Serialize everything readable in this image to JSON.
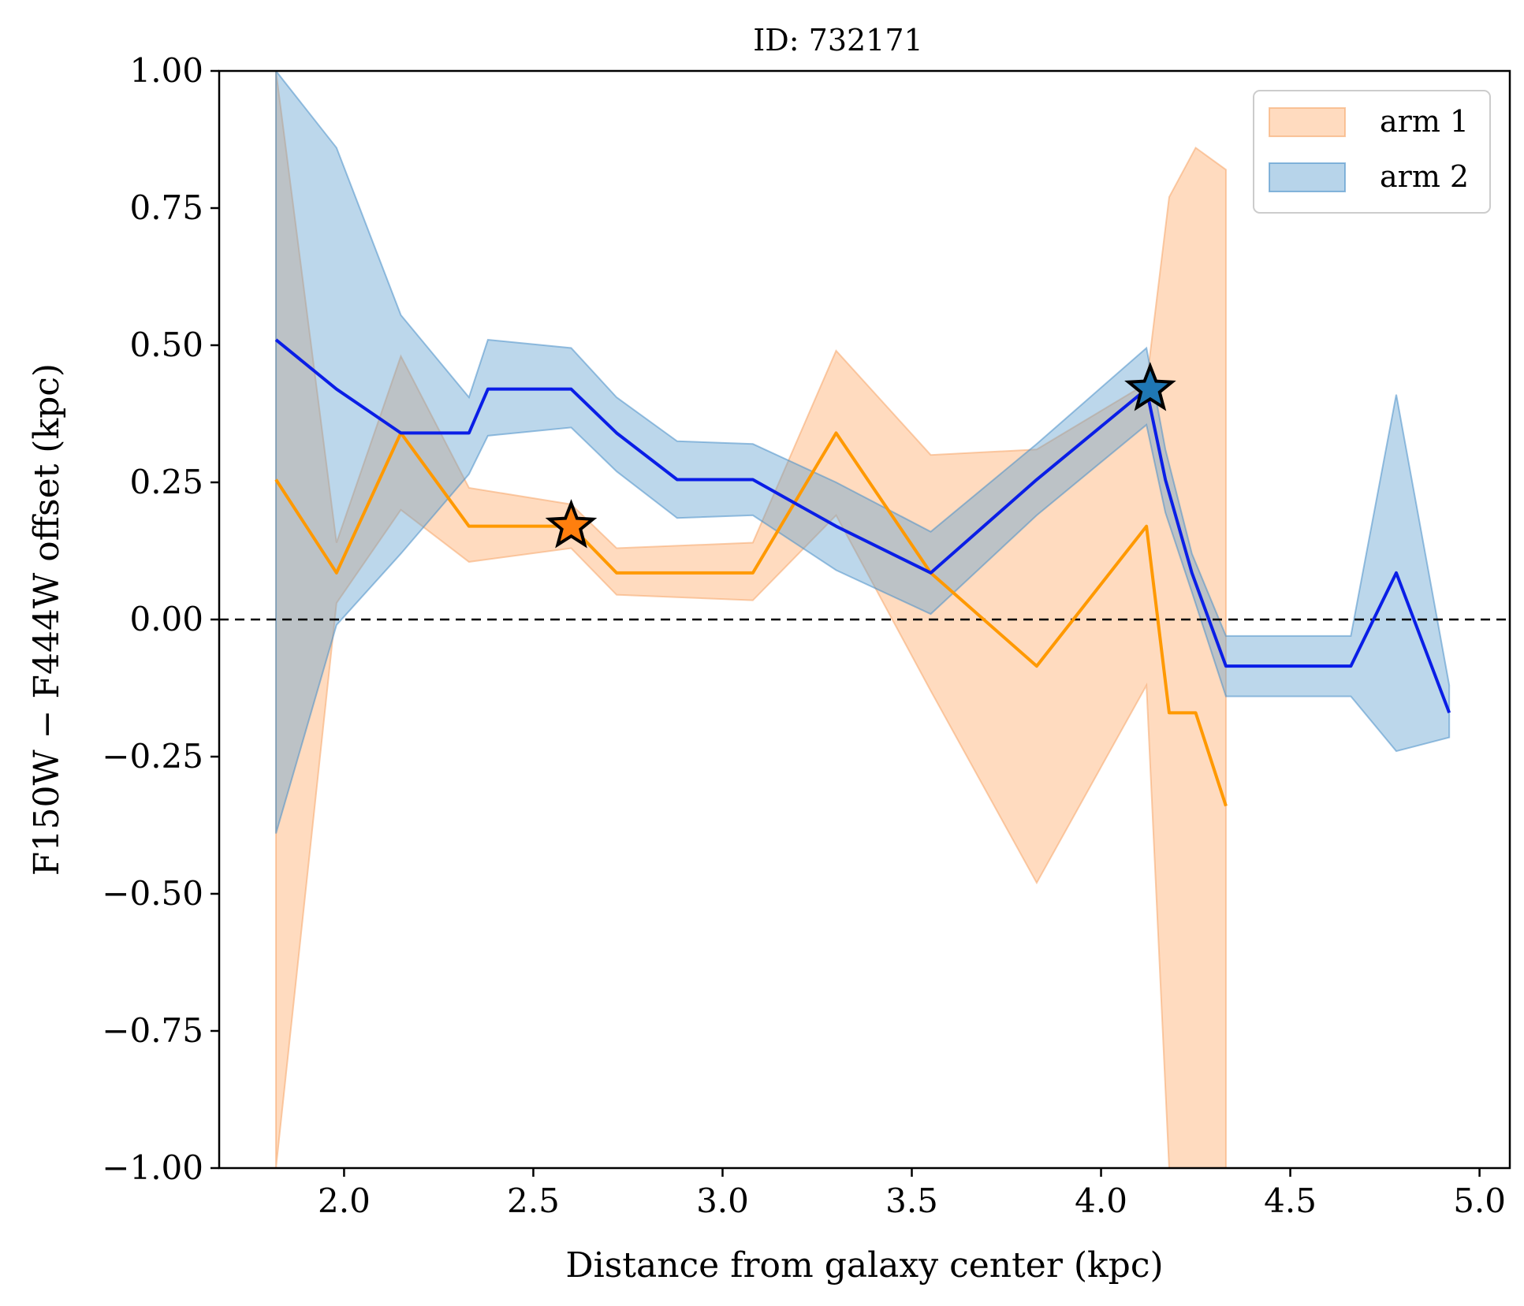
{
  "chart_data": {
    "type": "line",
    "title": "ID: 732171",
    "xlabel": "Distance from galaxy center (kpc)",
    "ylabel": "F150W − F444W offset (kpc)",
    "xlim": [
      1.67,
      5.08
    ],
    "ylim": [
      -1.0,
      1.0
    ],
    "xticks": [
      2.0,
      2.5,
      3.0,
      3.5,
      4.0,
      4.5,
      5.0
    ],
    "xtick_labels": [
      "2.0",
      "2.5",
      "3.0",
      "3.5",
      "4.0",
      "4.5",
      "5.0"
    ],
    "yticks": [
      -1.0,
      -0.75,
      -0.5,
      -0.25,
      0.0,
      0.25,
      0.5,
      0.75,
      1.0
    ],
    "ytick_labels": [
      "−1.00",
      "−0.75",
      "−0.50",
      "−0.25",
      "0.00",
      "0.25",
      "0.50",
      "0.75",
      "1.00"
    ],
    "reference_line": {
      "y": 0.0,
      "style": "dashed",
      "color": "#000000"
    },
    "legend": {
      "position": "top-right"
    },
    "series": [
      {
        "name": "arm 1",
        "line_color": "#ff9900",
        "band_color": "#ffb070",
        "band_edge": "#f5a66a",
        "x": [
          1.82,
          1.98,
          2.15,
          2.33,
          2.6,
          2.72,
          3.08,
          3.3,
          3.55,
          3.83,
          4.12,
          4.18,
          4.25,
          4.33
        ],
        "y": [
          0.255,
          0.085,
          0.34,
          0.17,
          0.17,
          0.085,
          0.085,
          0.34,
          0.085,
          -0.085,
          0.17,
          -0.17,
          -0.17,
          -0.34
        ],
        "upper": [
          1.0,
          0.14,
          0.48,
          0.24,
          0.21,
          0.13,
          0.14,
          0.49,
          0.3,
          0.31,
          0.43,
          0.77,
          0.86,
          0.82
        ],
        "lower": [
          -1.0,
          0.03,
          0.2,
          0.105,
          0.13,
          0.045,
          0.035,
          0.19,
          -0.13,
          -0.48,
          -0.12,
          -1.0,
          -1.0,
          -1.0
        ],
        "star": {
          "x": 2.6,
          "y": 0.17,
          "color": "#ff7f0e"
        }
      },
      {
        "name": "arm 2",
        "line_color": "#0a1ee6",
        "band_color": "#5f9fd0",
        "band_edge": "#4a90c8",
        "x": [
          1.82,
          1.98,
          2.15,
          2.33,
          2.38,
          2.6,
          2.72,
          2.88,
          3.08,
          3.3,
          3.55,
          3.83,
          4.12,
          4.17,
          4.24,
          4.33,
          4.42,
          4.66,
          4.78,
          4.92
        ],
        "y": [
          0.51,
          0.42,
          0.34,
          0.34,
          0.42,
          0.42,
          0.34,
          0.255,
          0.255,
          0.17,
          0.085,
          0.255,
          0.42,
          0.255,
          0.085,
          -0.085,
          -0.085,
          -0.085,
          0.085,
          -0.17
        ],
        "upper": [
          1.0,
          0.86,
          0.555,
          0.405,
          0.51,
          0.495,
          0.405,
          0.325,
          0.32,
          0.25,
          0.16,
          0.32,
          0.495,
          0.31,
          0.12,
          -0.03,
          -0.03,
          -0.03,
          0.41,
          -0.12
        ],
        "lower": [
          -0.39,
          -0.01,
          0.12,
          0.265,
          0.335,
          0.35,
          0.27,
          0.185,
          0.19,
          0.09,
          0.01,
          0.19,
          0.355,
          0.195,
          0.05,
          -0.14,
          -0.14,
          -0.14,
          -0.24,
          -0.215
        ],
        "star": {
          "x": 4.13,
          "y": 0.42,
          "color": "#1f77b4"
        }
      }
    ]
  }
}
